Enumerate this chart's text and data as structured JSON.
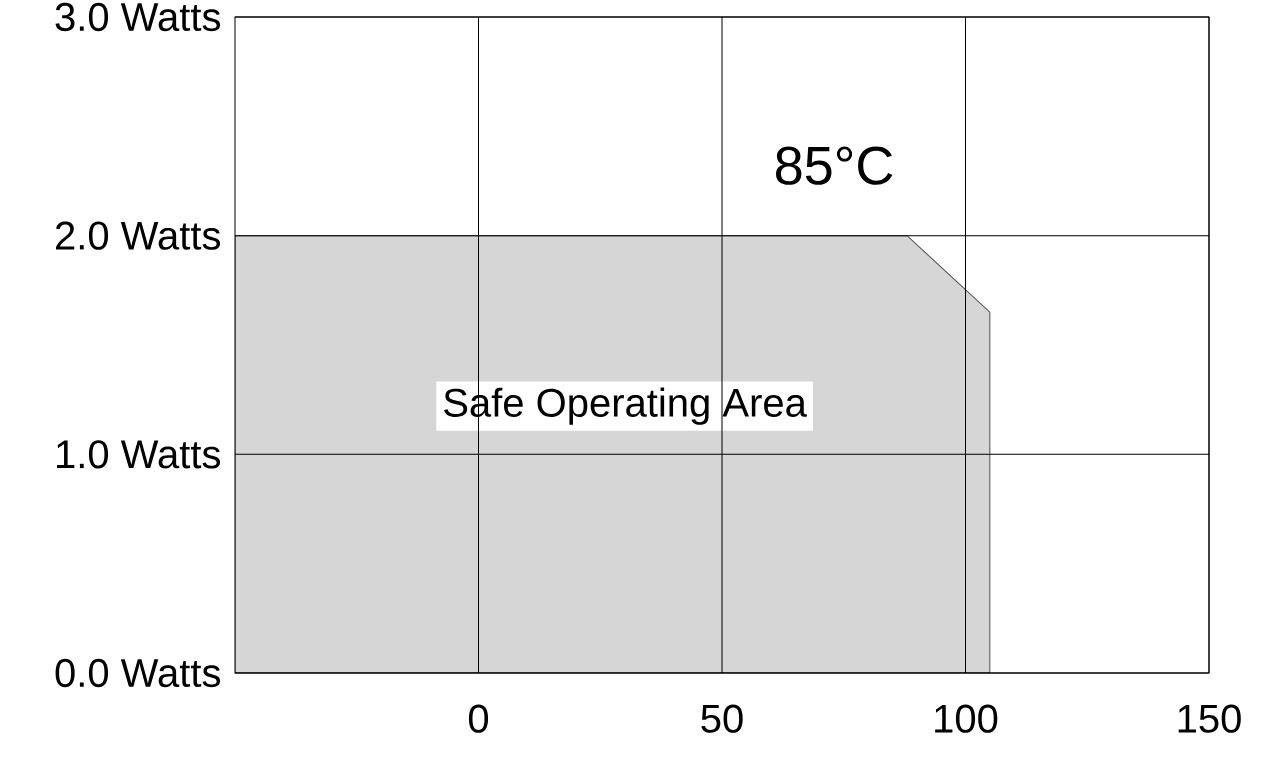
{
  "chart_data": {
    "type": "area",
    "x": [
      -50,
      88,
      105,
      105
    ],
    "values": [
      2,
      2,
      1.65,
      0
    ],
    "color": "#d6d6d6",
    "xlim": [
      -50,
      150
    ],
    "ylim": [
      0,
      3
    ],
    "xticks": [
      0,
      50,
      100,
      150
    ],
    "yticks": [
      {
        "value": 0,
        "label": "0.0 Watts"
      },
      {
        "value": 1,
        "label": "1.0 Watts"
      },
      {
        "value": 2,
        "label": "2.0 Watts"
      },
      {
        "value": 3,
        "label": "3.0 Watts"
      }
    ],
    "grid": true,
    "annotations": [
      "85°C",
      "Safe Operating Area"
    ]
  }
}
